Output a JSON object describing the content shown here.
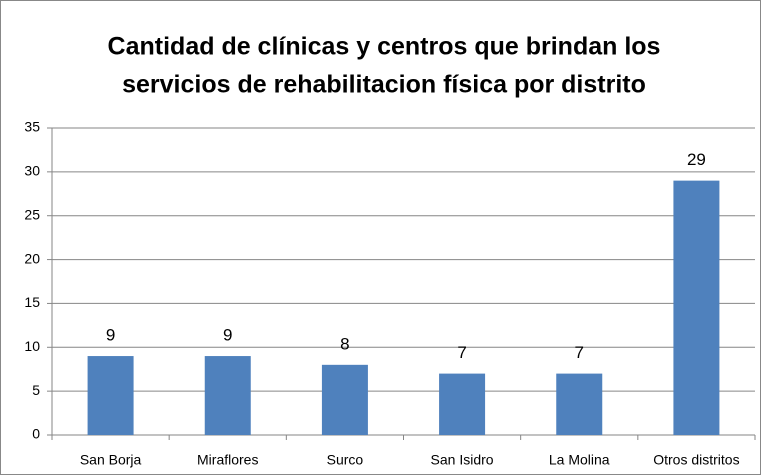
{
  "chart_data": {
    "type": "bar",
    "title": [
      "Cantidad de clínicas y centros que brindan los",
      "servicios de rehabilitacion física por distrito"
    ],
    "categories": [
      "San Borja",
      "Miraflores",
      "Surco",
      "San Isidro",
      "La Molina",
      "Otros distritos"
    ],
    "values": [
      9,
      9,
      8,
      7,
      7,
      29
    ],
    "color": "#4f81bd",
    "ylim": [
      0,
      35
    ],
    "yticks": [
      0,
      5,
      10,
      15,
      20,
      25,
      30,
      35
    ],
    "grid": true
  }
}
